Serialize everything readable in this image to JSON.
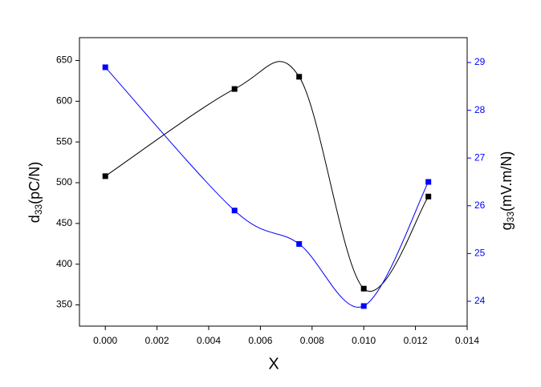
{
  "chart_data": {
    "type": "line",
    "x_label": "X",
    "y_label": [
      "d",
      "33",
      "(pC/N)"
    ],
    "y2_label": [
      "g",
      "33",
      "(mV.m/N)"
    ],
    "x": [
      0,
      0.005,
      0.0075,
      0.01,
      0.0125
    ],
    "series": [
      {
        "color": "#000000",
        "values": [
          508,
          615,
          630,
          370,
          483
        ]
      },
      {
        "color": "#0000ff",
        "axis": "y2",
        "values": [
          28.9,
          25.9,
          25.2,
          23.9,
          26.5
        ]
      }
    ],
    "xlim": [
      -0.001,
      0.014
    ],
    "xticks": [
      {
        "value": 0,
        "label": "0.000"
      },
      {
        "value": 0.002,
        "label": "0.002"
      },
      {
        "value": 0.004,
        "label": "0.004"
      },
      {
        "value": 0.006,
        "label": "0.006"
      },
      {
        "value": 0.008,
        "label": "0.008"
      },
      {
        "value": 0.01,
        "label": "0.010"
      },
      {
        "value": 0.012,
        "label": "0.012"
      },
      {
        "value": 0.014,
        "label": "0.014"
      }
    ],
    "ylim": [
      324,
      678
    ],
    "yticks": [
      350,
      400,
      450,
      500,
      550,
      600,
      650
    ],
    "y2lim": [
      23.48,
      29.52
    ],
    "y2ticks": [
      24,
      25,
      26,
      27,
      28,
      29
    ],
    "y2_color": "#0000ff"
  }
}
